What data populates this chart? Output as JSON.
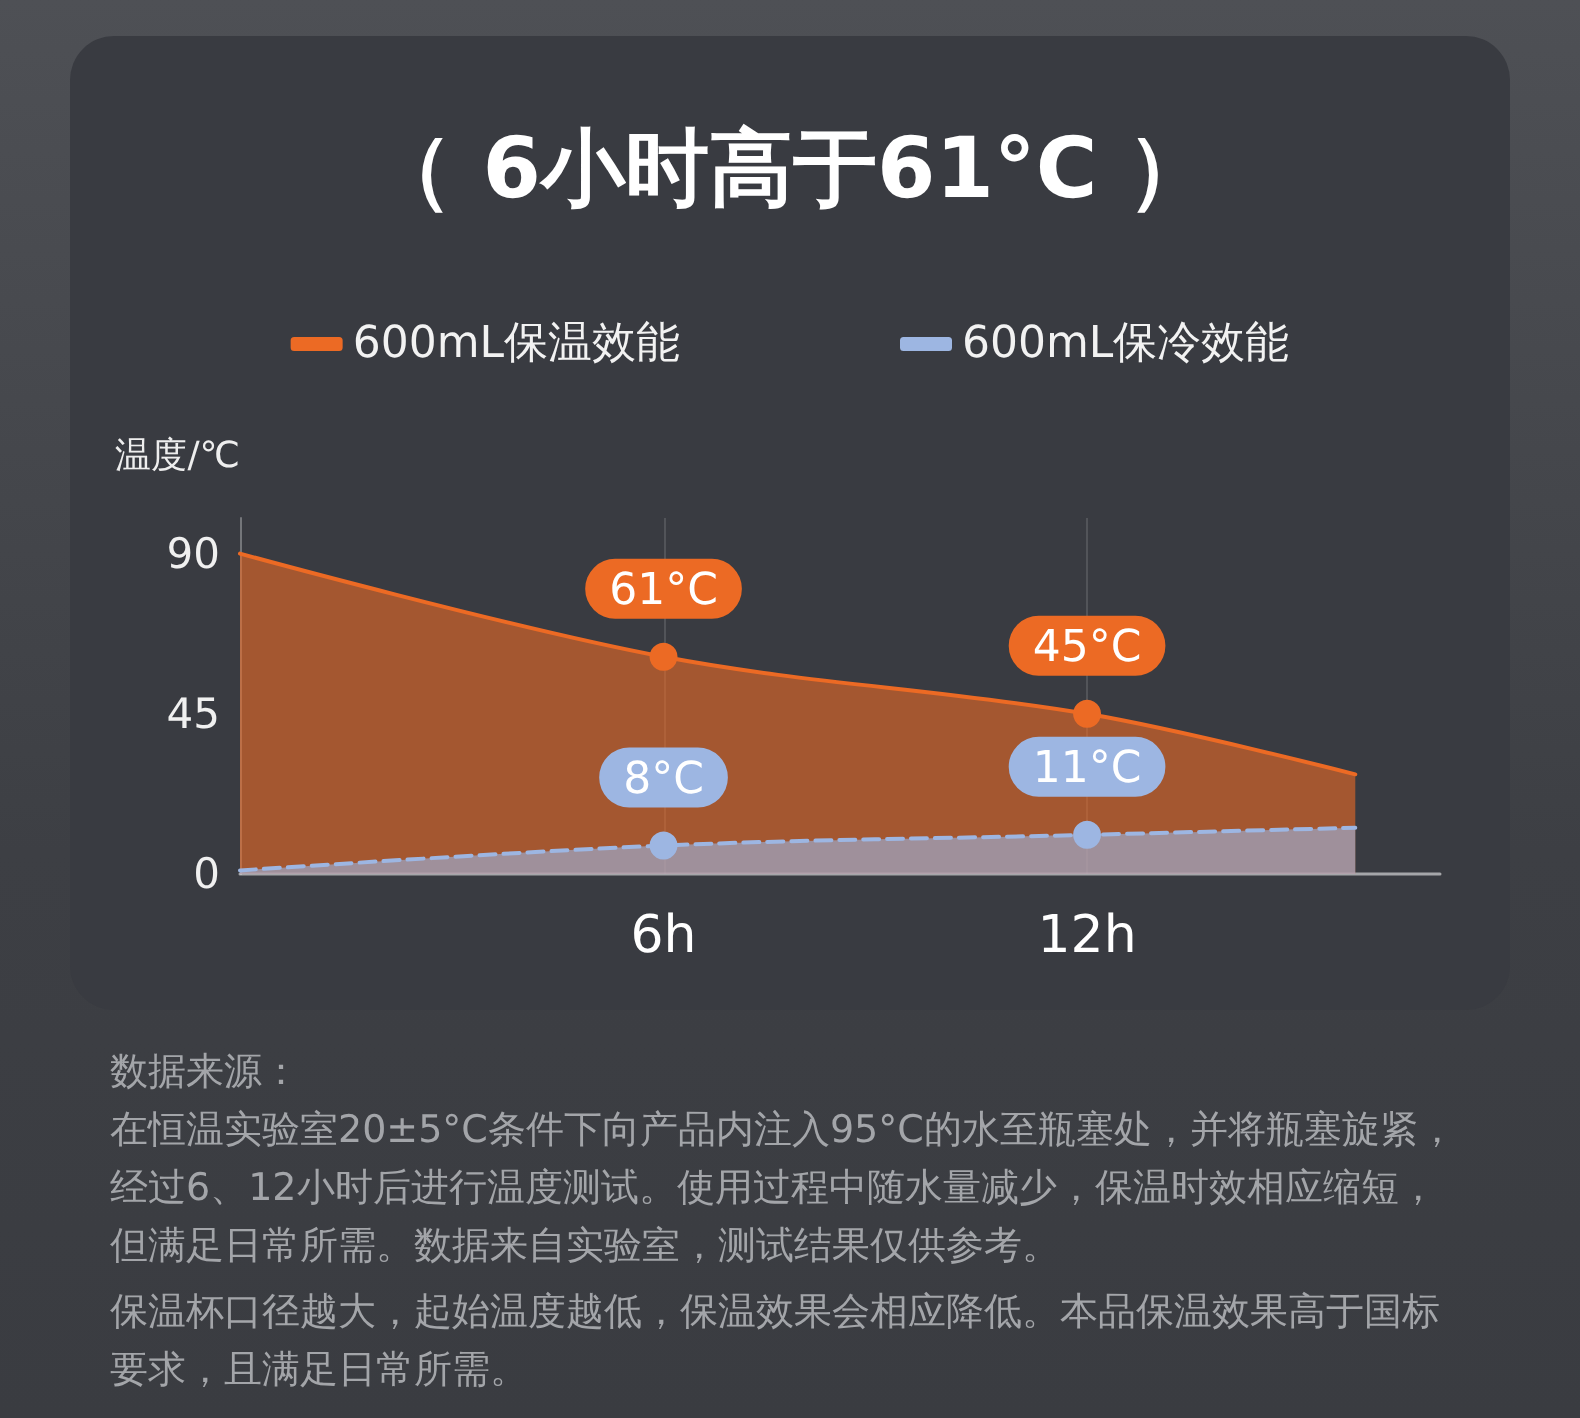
{
  "chart_data": {
    "type": "area",
    "title": "（ 6小时高于61°C ）",
    "ylabel": "温度/℃",
    "x": [
      0,
      6,
      12,
      15.8
    ],
    "xlim": [
      0,
      17
    ],
    "xticks": [
      {
        "value": 6,
        "label": "6h"
      },
      {
        "value": 12,
        "label": "12h"
      }
    ],
    "ylim": [
      0,
      100
    ],
    "yticks": [
      0,
      45,
      90
    ],
    "series": [
      {
        "name": "600mL保温效能",
        "color": "#ec6a24",
        "values": [
          90,
          61,
          45,
          28
        ],
        "value_labels": [
          null,
          "61°C",
          "45°C",
          null
        ],
        "line_style": "solid"
      },
      {
        "name": "600mL保冷效能",
        "color": "#9db6e2",
        "values": [
          1,
          8,
          11,
          13
        ],
        "value_labels": [
          null,
          "8°C",
          "11°C",
          null
        ],
        "line_style": "dashed"
      }
    ],
    "grid": "x",
    "legend": "top",
    "marker": "circle",
    "annotations": [
      "数据来源：",
      "在恒温实验室20±5°C条件下向产品内注入95°C的水至瓶塞处，并将瓶塞旋紧，经过6、12小时后进行温度测试。使用过程中随水量减少，保温时效相应缩短，但满足日常所需。数据来自实验室，测试结果仅供参考。",
      "保温杯口径越大，起始温度越低，保温效果会相应降低。本品保温效果高于国标要求，且满足日常所需。"
    ]
  }
}
